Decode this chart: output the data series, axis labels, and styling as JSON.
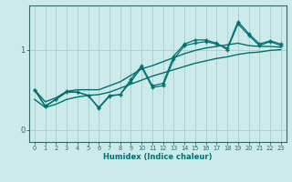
{
  "xlabel": "Humidex (Indice chaleur)",
  "bg_color": "#cceaea",
  "grid_color": "#b0d0d0",
  "line_color": "#007070",
  "tick_color": "#336666",
  "xlim": [
    -0.5,
    23.5
  ],
  "ylim": [
    -0.15,
    1.55
  ],
  "yticks": [
    0,
    1
  ],
  "xticks": [
    0,
    1,
    2,
    3,
    4,
    5,
    6,
    7,
    8,
    9,
    10,
    11,
    12,
    13,
    14,
    15,
    16,
    17,
    18,
    19,
    20,
    21,
    22,
    23
  ],
  "line_smooth_x": [
    0,
    1,
    2,
    3,
    4,
    5,
    6,
    7,
    8,
    9,
    10,
    11,
    12,
    13,
    14,
    15,
    16,
    17,
    18,
    19,
    20,
    21,
    22,
    23
  ],
  "line_smooth_y": [
    0.38,
    0.28,
    0.32,
    0.38,
    0.41,
    0.43,
    0.44,
    0.47,
    0.52,
    0.57,
    0.62,
    0.67,
    0.71,
    0.75,
    0.79,
    0.83,
    0.86,
    0.89,
    0.91,
    0.94,
    0.96,
    0.97,
    0.99,
    1.0
  ],
  "line_smooth2_x": [
    0,
    1,
    2,
    3,
    4,
    5,
    6,
    7,
    8,
    9,
    10,
    11,
    12,
    13,
    14,
    15,
    16,
    17,
    18,
    19,
    20,
    21,
    22,
    23
  ],
  "line_smooth2_y": [
    0.5,
    0.35,
    0.4,
    0.48,
    0.5,
    0.5,
    0.5,
    0.55,
    0.6,
    0.68,
    0.76,
    0.8,
    0.85,
    0.9,
    0.95,
    0.99,
    1.02,
    1.04,
    1.06,
    1.08,
    1.05,
    1.04,
    1.04,
    1.03
  ],
  "line_mk1_x": [
    0,
    1,
    2,
    3,
    4,
    5,
    6,
    7,
    8,
    9,
    10,
    11,
    12,
    13,
    14,
    15,
    16,
    17,
    18,
    19,
    20,
    21,
    22,
    23
  ],
  "line_mk1_y": [
    0.5,
    0.3,
    0.38,
    0.48,
    0.47,
    0.43,
    0.27,
    0.42,
    0.44,
    0.63,
    0.8,
    0.55,
    0.58,
    0.92,
    1.07,
    1.12,
    1.12,
    1.08,
    1.0,
    1.32,
    1.18,
    1.05,
    1.1,
    1.05
  ],
  "line_mk2_x": [
    0,
    1,
    2,
    3,
    4,
    5,
    6,
    7,
    8,
    9,
    10,
    11,
    12,
    13,
    14,
    15,
    16,
    17,
    18,
    19,
    20,
    21,
    22,
    23
  ],
  "line_mk2_y": [
    0.5,
    0.29,
    0.38,
    0.47,
    0.47,
    0.43,
    0.28,
    0.43,
    0.44,
    0.6,
    0.78,
    0.53,
    0.55,
    0.88,
    1.05,
    1.08,
    1.1,
    1.07,
    1.02,
    1.35,
    1.2,
    1.07,
    1.11,
    1.07
  ]
}
